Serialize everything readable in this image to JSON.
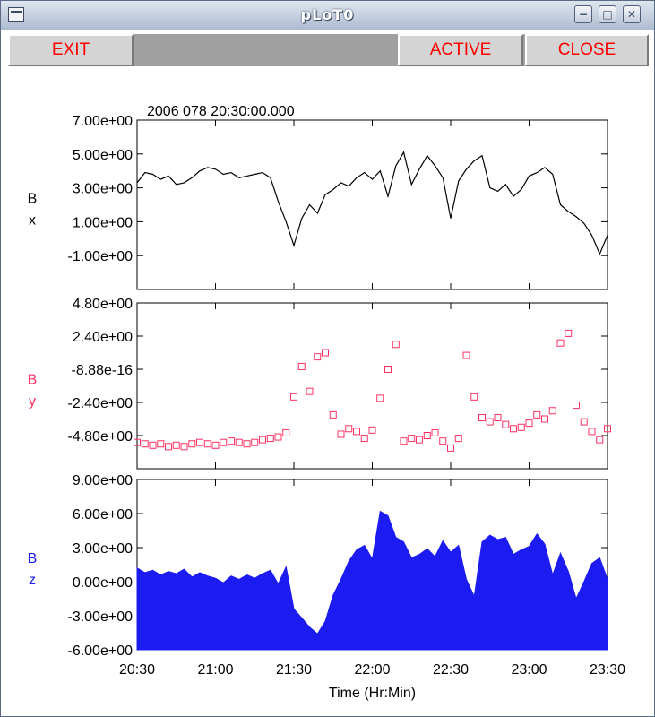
{
  "window": {
    "title": "pLoT0",
    "controls": [
      "minimize-icon",
      "maximize-icon",
      "close-icon"
    ]
  },
  "toolbar": {
    "exit_label": "EXIT",
    "active_label": "ACTIVE",
    "close_label": "CLOSE",
    "label_color": "#ff0000"
  },
  "chart_data": [
    {
      "type": "line",
      "title": "2006 078 20:30:00.000",
      "ylabel": "B x",
      "ylabel_lines": [
        "B",
        "x"
      ],
      "color": "#000000",
      "ylim": [
        -3.0,
        7.0
      ],
      "yticks": [
        "7.00e+00",
        "5.00e+00",
        "3.00e+00",
        "1.00e+00",
        "-1.00e+00"
      ],
      "ytick_values": [
        7.0,
        5.0,
        3.0,
        1.0,
        -1.0
      ],
      "x": [
        "20:30",
        "20:33",
        "20:36",
        "20:39",
        "20:42",
        "20:45",
        "20:48",
        "20:51",
        "20:54",
        "20:57",
        "21:00",
        "21:03",
        "21:06",
        "21:09",
        "21:12",
        "21:15",
        "21:18",
        "21:21",
        "21:24",
        "21:27",
        "21:30",
        "21:33",
        "21:36",
        "21:39",
        "21:42",
        "21:45",
        "21:48",
        "21:51",
        "21:54",
        "21:57",
        "22:00",
        "22:03",
        "22:06",
        "22:09",
        "22:12",
        "22:15",
        "22:18",
        "22:21",
        "22:24",
        "22:27",
        "22:30",
        "22:33",
        "22:36",
        "22:39",
        "22:42",
        "22:45",
        "22:48",
        "22:51",
        "22:54",
        "22:57",
        "23:00",
        "23:03",
        "23:06",
        "23:09",
        "23:12",
        "23:15",
        "23:18",
        "23:21",
        "23:24",
        "23:27",
        "23:30"
      ],
      "values": [
        3.3,
        3.9,
        3.8,
        3.5,
        3.7,
        3.2,
        3.3,
        3.6,
        4.0,
        4.2,
        4.1,
        3.8,
        3.9,
        3.6,
        3.7,
        3.8,
        3.9,
        3.6,
        2.2,
        1.0,
        -0.4,
        1.2,
        2.0,
        1.5,
        2.6,
        2.9,
        3.3,
        3.1,
        3.6,
        3.9,
        3.5,
        4.0,
        2.5,
        4.3,
        5.1,
        3.2,
        4.1,
        4.9,
        4.3,
        3.6,
        1.2,
        3.4,
        4.1,
        4.6,
        4.9,
        3.0,
        2.8,
        3.2,
        2.5,
        2.9,
        3.7,
        3.9,
        4.2,
        3.8,
        2.0,
        1.6,
        1.3,
        0.9,
        0.2,
        -0.9,
        0.2
      ],
      "grid": false
    },
    {
      "type": "scatter",
      "ylabel": "B y",
      "ylabel_lines": [
        "B",
        "y"
      ],
      "color": "#ff3060",
      "ylim": [
        -7.2,
        4.8
      ],
      "yticks": [
        "4.80e+00",
        "2.40e+00",
        "-8.88e-16",
        "-2.40e+00",
        "-4.80e+00"
      ],
      "ytick_values": [
        4.8,
        2.4,
        0.0,
        -2.4,
        -4.8
      ],
      "x": [
        "20:30",
        "20:33",
        "20:36",
        "20:39",
        "20:42",
        "20:45",
        "20:48",
        "20:51",
        "20:54",
        "20:57",
        "21:00",
        "21:03",
        "21:06",
        "21:09",
        "21:12",
        "21:15",
        "21:18",
        "21:21",
        "21:24",
        "21:27",
        "21:30",
        "21:33",
        "21:36",
        "21:39",
        "21:42",
        "21:45",
        "21:48",
        "21:51",
        "21:54",
        "21:57",
        "22:00",
        "22:03",
        "22:06",
        "22:09",
        "22:12",
        "22:15",
        "22:18",
        "22:21",
        "22:24",
        "22:27",
        "22:30",
        "22:33",
        "22:36",
        "22:39",
        "22:42",
        "22:45",
        "22:48",
        "22:51",
        "22:54",
        "22:57",
        "23:00",
        "23:03",
        "23:06",
        "23:09",
        "23:12",
        "23:15",
        "23:18",
        "23:21",
        "23:24",
        "23:27",
        "23:30"
      ],
      "values": [
        -5.3,
        -5.4,
        -5.5,
        -5.4,
        -5.6,
        -5.5,
        -5.6,
        -5.4,
        -5.3,
        -5.4,
        -5.5,
        -5.3,
        -5.2,
        -5.3,
        -5.4,
        -5.3,
        -5.1,
        -5.0,
        -4.9,
        -4.6,
        -2.0,
        0.2,
        -1.6,
        0.9,
        1.2,
        -3.3,
        -4.7,
        -4.3,
        -4.5,
        -5.0,
        -4.4,
        -2.1,
        0.0,
        1.8,
        -5.2,
        -5.0,
        -5.1,
        -4.8,
        -4.6,
        -5.2,
        -5.7,
        -5.0,
        1.0,
        -2.0,
        -3.5,
        -3.8,
        -3.5,
        -4.0,
        -4.3,
        -4.2,
        -3.9,
        -3.3,
        -3.6,
        -3.0,
        1.9,
        2.6,
        -2.6,
        -3.8,
        -4.5,
        -5.1,
        -4.3
      ],
      "grid": false
    },
    {
      "type": "area",
      "ylabel": "B z",
      "ylabel_lines": [
        "B",
        "z"
      ],
      "color": "#1c1cf2",
      "ylim": [
        -6.0,
        9.0
      ],
      "yticks": [
        "9.00e+00",
        "6.00e+00",
        "3.00e+00",
        "0.00e+00",
        "-3.00e+00",
        "-6.00e+00"
      ],
      "ytick_values": [
        9.0,
        6.0,
        3.0,
        0.0,
        -3.0,
        -6.0
      ],
      "xticks": [
        "20:30",
        "21:00",
        "21:30",
        "22:00",
        "22:30",
        "23:00",
        "23:30"
      ],
      "xlabel": "Time (Hr:Min)",
      "x": [
        "20:30",
        "20:33",
        "20:36",
        "20:39",
        "20:42",
        "20:45",
        "20:48",
        "20:51",
        "20:54",
        "20:57",
        "21:00",
        "21:03",
        "21:06",
        "21:09",
        "21:12",
        "21:15",
        "21:18",
        "21:21",
        "21:24",
        "21:27",
        "21:30",
        "21:33",
        "21:36",
        "21:39",
        "21:42",
        "21:45",
        "21:48",
        "21:51",
        "21:54",
        "21:57",
        "22:00",
        "22:03",
        "22:06",
        "22:09",
        "22:12",
        "22:15",
        "22:18",
        "22:21",
        "22:24",
        "22:27",
        "22:30",
        "22:33",
        "22:36",
        "22:39",
        "22:42",
        "22:45",
        "22:48",
        "22:51",
        "22:54",
        "22:57",
        "23:00",
        "23:03",
        "23:06",
        "23:09",
        "23:12",
        "23:15",
        "23:18",
        "23:21",
        "23:24",
        "23:27",
        "23:30"
      ],
      "values": [
        1.2,
        0.8,
        1.0,
        0.6,
        0.9,
        0.7,
        1.1,
        0.4,
        0.8,
        0.5,
        0.3,
        -0.1,
        0.5,
        0.2,
        0.6,
        0.3,
        0.7,
        1.0,
        -0.2,
        1.3,
        -2.4,
        -3.2,
        -4.0,
        -4.6,
        -3.5,
        -1.2,
        0.2,
        1.8,
        2.8,
        3.2,
        2.0,
        6.2,
        5.8,
        3.9,
        3.5,
        2.1,
        2.4,
        2.9,
        2.2,
        3.6,
        2.6,
        3.2,
        0.2,
        -1.3,
        3.5,
        4.1,
        3.7,
        3.9,
        2.4,
        2.8,
        3.1,
        4.2,
        3.3,
        0.6,
        2.5,
        0.9,
        -1.5,
        0.0,
        1.6,
        2.1,
        0.2
      ],
      "grid": false
    }
  ]
}
